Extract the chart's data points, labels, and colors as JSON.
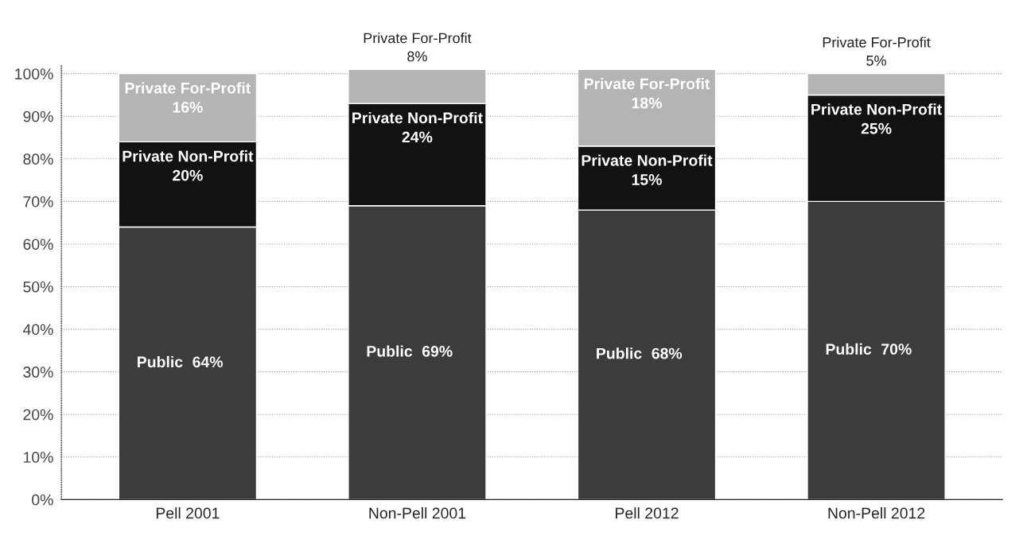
{
  "chart_data": {
    "type": "bar",
    "stacked": true,
    "categories": [
      "Pell 2001",
      "Non-Pell 2001",
      "Pell 2012",
      "Non-Pell 2012"
    ],
    "series": [
      {
        "name": "Public",
        "color": "#3c3c3c",
        "values": [
          64,
          69,
          68,
          70
        ],
        "value_labels": [
          "64%",
          "69%",
          "68%",
          "70%"
        ]
      },
      {
        "name": "Private Non-Profit",
        "color": "#121212",
        "values": [
          20,
          24,
          15,
          25
        ],
        "value_labels": [
          "20%",
          "24%",
          "15%",
          "25%"
        ]
      },
      {
        "name": "Private For-Profit",
        "color": "#b4b4b4",
        "values": [
          16,
          8,
          18,
          5
        ],
        "value_labels": [
          "16%",
          "8%",
          "18%",
          "5%"
        ]
      }
    ],
    "ylim": [
      0,
      102
    ],
    "yticks": [
      {
        "value": 0,
        "label": "0%"
      },
      {
        "value": 10,
        "label": "10%"
      },
      {
        "value": 20,
        "label": "20%"
      },
      {
        "value": 30,
        "label": "30%"
      },
      {
        "value": 40,
        "label": "40%"
      },
      {
        "value": 50,
        "label": "50%"
      },
      {
        "value": 60,
        "label": "60%"
      },
      {
        "value": 70,
        "label": "70%"
      },
      {
        "value": 80,
        "label": "80%"
      },
      {
        "value": 90,
        "label": "90%"
      },
      {
        "value": 100,
        "label": "100%"
      }
    ],
    "grid": "y",
    "legend": false
  }
}
